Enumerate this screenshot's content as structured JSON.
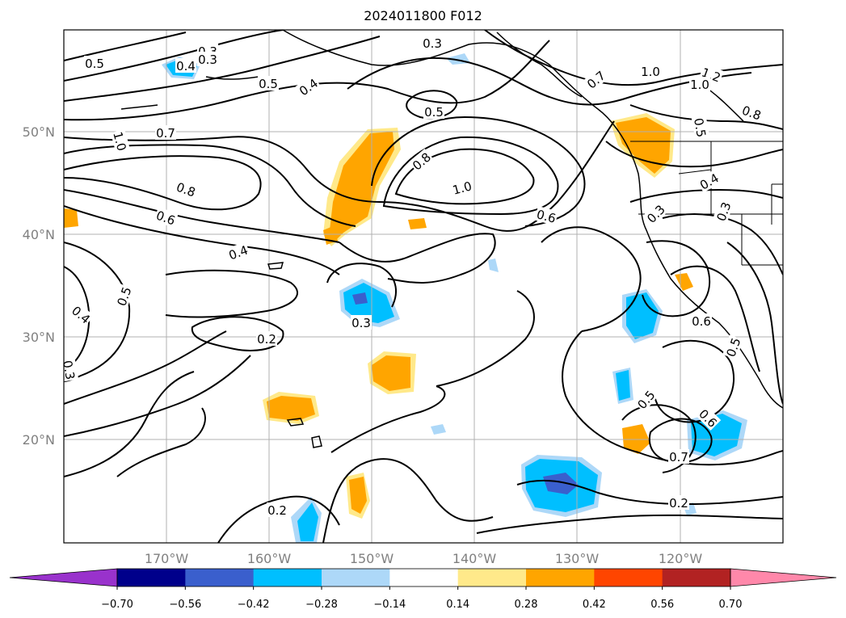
{
  "title": "2024011800 F012",
  "map": {
    "lat_labels": [
      "50°N",
      "40°N",
      "30°N",
      "20°N"
    ],
    "lon_labels": [
      "170°W",
      "160°W",
      "150°W",
      "140°W",
      "130°W",
      "120°W"
    ],
    "grid_color": "#b0b0b0",
    "contour_labels": [
      "0.5",
      "0.4",
      "0.3",
      "0.3",
      "0.5",
      "0.4",
      "0.3",
      "0.5",
      "0.7",
      "1.0",
      "1.2",
      "1.0",
      "0.8",
      "0.7",
      "0.5",
      "1.0",
      "0.8",
      "1.0",
      "0.8",
      "0.6",
      "0.6",
      "0.4",
      "0.3",
      "0.4",
      "0.3",
      "0.5",
      "0.4",
      "0.3",
      "0.3",
      "0.2",
      "0.6",
      "0.5",
      "0.5",
      "0.6",
      "0.7",
      "0.2",
      "0.2"
    ]
  },
  "colorbar": {
    "colors": [
      "#9932cc",
      "#00008b",
      "#3a5fcd",
      "#00bfff",
      "#add8f8",
      "#ffffff",
      "#ffe98a",
      "#ffa500",
      "#ff4500",
      "#b22222",
      "#ff88aa"
    ],
    "tick_labels": [
      "−0.70",
      "−0.56",
      "−0.42",
      "−0.28",
      "−0.14",
      "0.14",
      "0.28",
      "0.42",
      "0.56",
      "0.70"
    ]
  }
}
